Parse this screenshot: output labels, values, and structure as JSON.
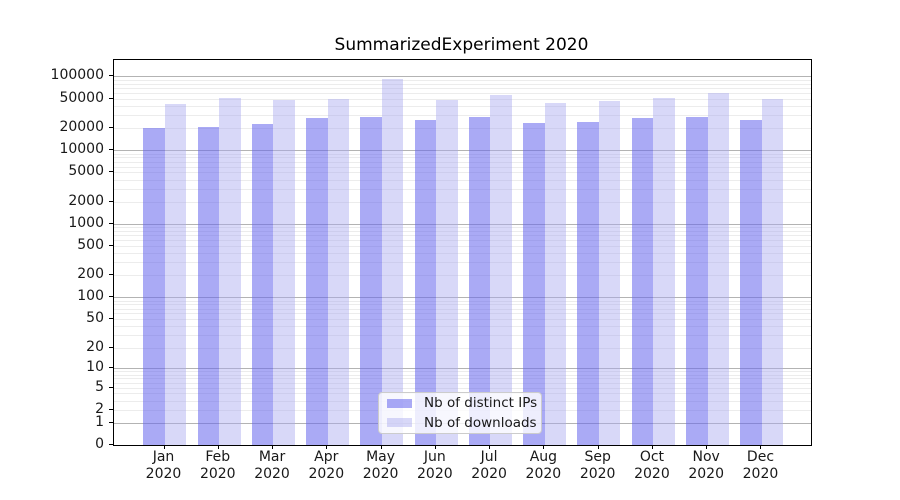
{
  "chart_data": {
    "type": "bar",
    "title": "SummarizedExperiment 2020",
    "categories": [
      "Jan 2020",
      "Feb 2020",
      "Mar 2020",
      "Apr 2020",
      "May 2020",
      "Jun 2020",
      "Jul 2020",
      "Aug 2020",
      "Sep 2020",
      "Oct 2020",
      "Nov 2020",
      "Dec 2020"
    ],
    "series": [
      {
        "name": "Nb of distinct IPs",
        "color": "#6565ED",
        "alpha": 0.55,
        "values": [
          20000,
          20800,
          22800,
          27000,
          28100,
          25400,
          28100,
          23500,
          24000,
          27000,
          28100,
          25800
        ]
      },
      {
        "name": "Nb of downloads",
        "color": "#A8A8F0",
        "alpha": 0.45,
        "values": [
          42000,
          51500,
          48000,
          50000,
          92000,
          47500,
          55500,
          43600,
          46000,
          51500,
          59000,
          49000
        ]
      }
    ],
    "yscale": "log1p",
    "ylim": [
      0,
      164000
    ],
    "yticks": [
      100000,
      50000,
      20000,
      10000,
      5000,
      2000,
      1000,
      500,
      200,
      100,
      50,
      20,
      10,
      5,
      2,
      1,
      0
    ],
    "grid": true,
    "legend_position": "lower center",
    "colors": {
      "grid_major": "#B3B3B3",
      "grid_minor": "#ECECEC",
      "axis": "#000000",
      "text": "#191919",
      "background": "#FFFFFF"
    }
  }
}
